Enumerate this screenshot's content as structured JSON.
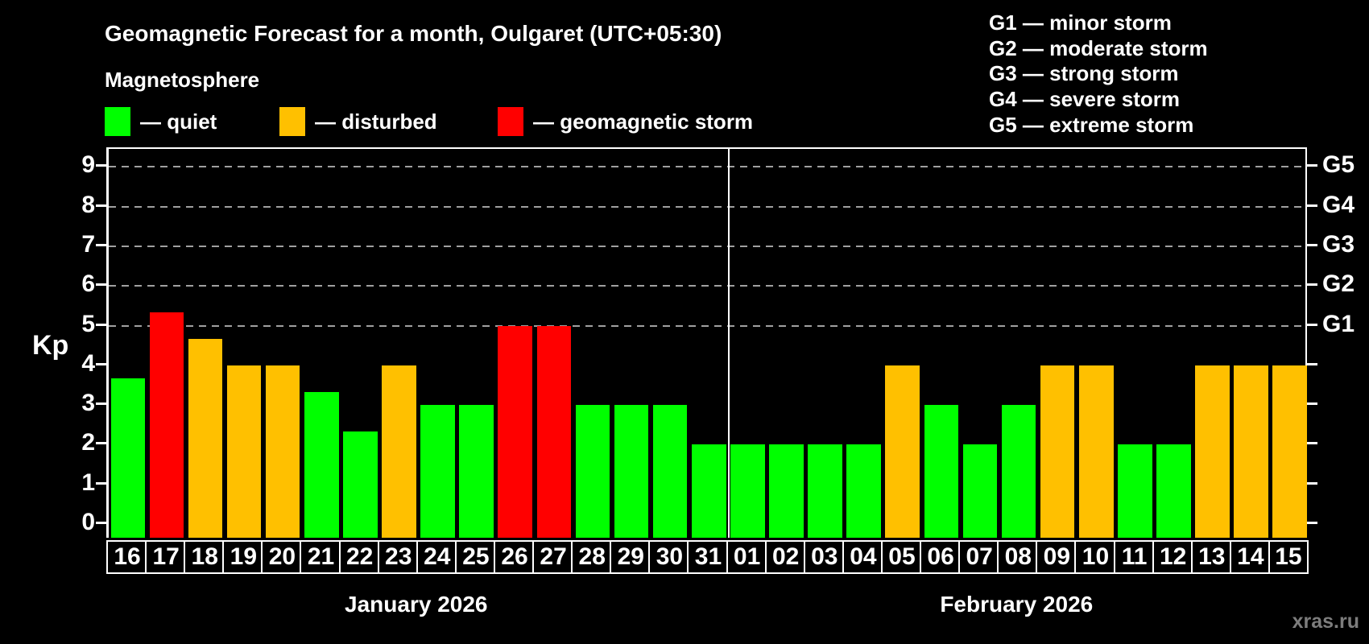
{
  "header": {
    "title": "Geomagnetic Forecast for a month, Oulgaret (UTC+05:30)",
    "subtitle": "Magnetosphere"
  },
  "g_scale": [
    "G1 — minor storm",
    "G2 — moderate storm",
    "G3 — strong storm",
    "G4 — severe storm",
    "G5 — extreme storm"
  ],
  "legend": [
    {
      "status": "quiet",
      "label": "— quiet"
    },
    {
      "status": "disturbed",
      "label": "— disturbed"
    },
    {
      "status": "storm",
      "label": "— geomagnetic storm"
    }
  ],
  "colors": {
    "quiet": "#00ff00",
    "disturbed": "#ffc000",
    "storm": "#ff0000",
    "grid": "#a0a0a0",
    "axis": "#ffffff",
    "background": "#000000"
  },
  "watermark": "xras.ru",
  "chart_data": {
    "type": "bar",
    "title": "Geomagnetic Forecast for a month, Oulgaret (UTC+05:30)",
    "ylabel": "Kp",
    "ylim": [
      0,
      9
    ],
    "yticks": [
      0,
      1,
      2,
      3,
      4,
      5,
      6,
      7,
      8,
      9
    ],
    "grid": "dashed horizontal at levels 5-9 only",
    "right_axis": {
      "labels": [
        "G1",
        "G2",
        "G3",
        "G4",
        "G5"
      ],
      "levels": [
        5,
        6,
        7,
        8,
        9
      ]
    },
    "legend_position": "top-left",
    "months": [
      {
        "label": "January 2026",
        "day_count": 16
      },
      {
        "label": "February 2026",
        "day_count": 15
      }
    ],
    "bars": [
      {
        "day": "16",
        "value": 3.67,
        "status": "quiet"
      },
      {
        "day": "17",
        "value": 5.33,
        "status": "storm"
      },
      {
        "day": "18",
        "value": 4.67,
        "status": "disturbed"
      },
      {
        "day": "19",
        "value": 4,
        "status": "disturbed"
      },
      {
        "day": "20",
        "value": 4,
        "status": "disturbed"
      },
      {
        "day": "21",
        "value": 3.33,
        "status": "quiet"
      },
      {
        "day": "22",
        "value": 2.33,
        "status": "quiet"
      },
      {
        "day": "23",
        "value": 4,
        "status": "disturbed"
      },
      {
        "day": "24",
        "value": 3,
        "status": "quiet"
      },
      {
        "day": "25",
        "value": 3,
        "status": "quiet"
      },
      {
        "day": "26",
        "value": 5,
        "status": "storm"
      },
      {
        "day": "27",
        "value": 5,
        "status": "storm"
      },
      {
        "day": "28",
        "value": 3,
        "status": "quiet"
      },
      {
        "day": "29",
        "value": 3,
        "status": "quiet"
      },
      {
        "day": "30",
        "value": 3,
        "status": "quiet"
      },
      {
        "day": "31",
        "value": 2,
        "status": "quiet"
      },
      {
        "day": "01",
        "value": 2,
        "status": "quiet"
      },
      {
        "day": "02",
        "value": 2,
        "status": "quiet"
      },
      {
        "day": "03",
        "value": 2,
        "status": "quiet"
      },
      {
        "day": "04",
        "value": 2,
        "status": "quiet"
      },
      {
        "day": "05",
        "value": 4,
        "status": "disturbed"
      },
      {
        "day": "06",
        "value": 3,
        "status": "quiet"
      },
      {
        "day": "07",
        "value": 2,
        "status": "quiet"
      },
      {
        "day": "08",
        "value": 3,
        "status": "quiet"
      },
      {
        "day": "09",
        "value": 4,
        "status": "disturbed"
      },
      {
        "day": "10",
        "value": 4,
        "status": "disturbed"
      },
      {
        "day": "11",
        "value": 2,
        "status": "quiet"
      },
      {
        "day": "12",
        "value": 2,
        "status": "quiet"
      },
      {
        "day": "13",
        "value": 4,
        "status": "disturbed"
      },
      {
        "day": "14",
        "value": 4,
        "status": "disturbed"
      },
      {
        "day": "15",
        "value": 4,
        "status": "disturbed"
      }
    ]
  }
}
